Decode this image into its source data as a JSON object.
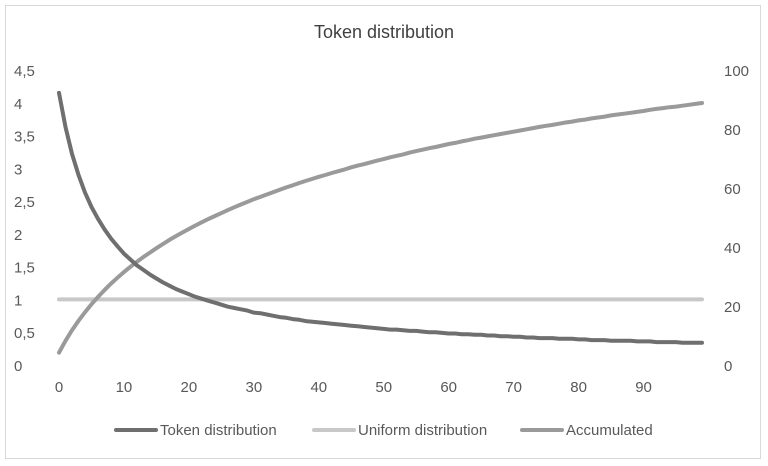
{
  "chart_data": {
    "type": "line",
    "title": "Token distribution",
    "x": [
      0,
      1,
      2,
      3,
      4,
      5,
      6,
      7,
      8,
      9,
      10,
      11,
      12,
      13,
      14,
      15,
      16,
      17,
      18,
      19,
      20,
      21,
      22,
      23,
      24,
      25,
      26,
      27,
      28,
      29,
      30,
      31,
      32,
      33,
      34,
      35,
      36,
      37,
      38,
      39,
      40,
      41,
      42,
      43,
      44,
      45,
      46,
      47,
      48,
      49,
      50,
      51,
      52,
      53,
      54,
      55,
      56,
      57,
      58,
      59,
      60,
      61,
      62,
      63,
      64,
      65,
      66,
      67,
      68,
      69,
      70,
      71,
      72,
      73,
      74,
      75,
      76,
      77,
      78,
      79,
      80,
      81,
      82,
      83,
      84,
      85,
      86,
      87,
      88,
      89,
      90,
      91,
      92,
      93,
      94,
      95,
      96,
      97,
      98,
      99
    ],
    "x_ticks": [
      0,
      10,
      20,
      30,
      40,
      50,
      60,
      70,
      80,
      90
    ],
    "x_tick_labels": [
      "0",
      "10",
      "20",
      "30",
      "40",
      "50",
      "60",
      "70",
      "80",
      "90"
    ],
    "xlim": [
      0,
      99
    ],
    "y_left": {
      "ylim": [
        0,
        4.5
      ],
      "ticks": [
        0,
        0.5,
        1,
        1.5,
        2,
        2.5,
        3,
        3.5,
        4,
        4.5
      ],
      "tick_labels": [
        "0",
        "0,5",
        "1",
        "1,5",
        "2",
        "2,5",
        "3",
        "3,5",
        "4",
        "4,5"
      ]
    },
    "y_right": {
      "ylim": [
        0,
        100
      ],
      "ticks": [
        0,
        20,
        40,
        60,
        80,
        100
      ],
      "tick_labels": [
        "0",
        "20",
        "40",
        "60",
        "80",
        "100"
      ]
    },
    "series": [
      {
        "name": "Token distribution",
        "axis": "left",
        "color": "#6f6f6f",
        "values": [
          4.15,
          3.63,
          3.22,
          2.9,
          2.63,
          2.41,
          2.23,
          2.07,
          1.93,
          1.81,
          1.7,
          1.61,
          1.52,
          1.45,
          1.38,
          1.32,
          1.26,
          1.21,
          1.16,
          1.12,
          1.08,
          1.04,
          1.01,
          0.98,
          0.95,
          0.92,
          0.89,
          0.87,
          0.85,
          0.83,
          0.8,
          0.79,
          0.77,
          0.75,
          0.73,
          0.72,
          0.7,
          0.69,
          0.67,
          0.66,
          0.65,
          0.64,
          0.63,
          0.62,
          0.61,
          0.6,
          0.59,
          0.58,
          0.57,
          0.56,
          0.55,
          0.54,
          0.54,
          0.53,
          0.52,
          0.52,
          0.51,
          0.5,
          0.5,
          0.49,
          0.48,
          0.48,
          0.47,
          0.47,
          0.46,
          0.46,
          0.45,
          0.45,
          0.44,
          0.44,
          0.43,
          0.43,
          0.42,
          0.42,
          0.41,
          0.41,
          0.41,
          0.4,
          0.4,
          0.4,
          0.39,
          0.39,
          0.38,
          0.38,
          0.38,
          0.37,
          0.37,
          0.37,
          0.37,
          0.36,
          0.36,
          0.36,
          0.35,
          0.35,
          0.35,
          0.35,
          0.34,
          0.34,
          0.34,
          0.34
        ]
      },
      {
        "name": "Uniform distribution",
        "axis": "left",
        "color": "#c8c8c8",
        "values": [
          1,
          1,
          1,
          1,
          1,
          1,
          1,
          1,
          1,
          1,
          1,
          1,
          1,
          1,
          1,
          1,
          1,
          1,
          1,
          1,
          1,
          1,
          1,
          1,
          1,
          1,
          1,
          1,
          1,
          1,
          1,
          1,
          1,
          1,
          1,
          1,
          1,
          1,
          1,
          1,
          1,
          1,
          1,
          1,
          1,
          1,
          1,
          1,
          1,
          1,
          1,
          1,
          1,
          1,
          1,
          1,
          1,
          1,
          1,
          1,
          1,
          1,
          1,
          1,
          1,
          1,
          1,
          1,
          1,
          1,
          1,
          1,
          1,
          1,
          1,
          1,
          1,
          1,
          1,
          1,
          1,
          1,
          1,
          1,
          1,
          1,
          1,
          1,
          1,
          1,
          1,
          1,
          1,
          1,
          1,
          1,
          1,
          1,
          1,
          1
        ]
      },
      {
        "name": "Accumulated",
        "axis": "right",
        "color": "#9a9a9a",
        "values": [
          4.2,
          8.2,
          11.8,
          15.0,
          17.9,
          20.6,
          23.1,
          25.4,
          27.6,
          29.6,
          31.5,
          33.3,
          35.0,
          36.6,
          38.1,
          39.6,
          41.0,
          42.4,
          43.7,
          44.9,
          46.1,
          47.3,
          48.4,
          49.5,
          50.5,
          51.5,
          52.5,
          53.5,
          54.4,
          55.3,
          56.2,
          57.0,
          57.8,
          58.6,
          59.4,
          60.2,
          60.9,
          61.7,
          62.4,
          63.1,
          63.8,
          64.4,
          65.1,
          65.7,
          66.3,
          67.0,
          67.6,
          68.1,
          68.7,
          69.3,
          69.8,
          70.4,
          70.9,
          71.4,
          72.0,
          72.5,
          73.0,
          73.5,
          73.9,
          74.4,
          74.9,
          75.3,
          75.8,
          76.2,
          76.7,
          77.1,
          77.5,
          77.9,
          78.3,
          78.7,
          79.1,
          79.5,
          79.9,
          80.3,
          80.7,
          81.1,
          81.4,
          81.8,
          82.2,
          82.5,
          82.9,
          83.2,
          83.6,
          83.9,
          84.2,
          84.6,
          84.9,
          85.2,
          85.5,
          85.8,
          86.1,
          86.5,
          86.8,
          87.1,
          87.4,
          87.6,
          87.9,
          88.2,
          88.5,
          88.8
        ]
      }
    ],
    "legend": {
      "placement": "bottom"
    },
    "grid": false
  }
}
